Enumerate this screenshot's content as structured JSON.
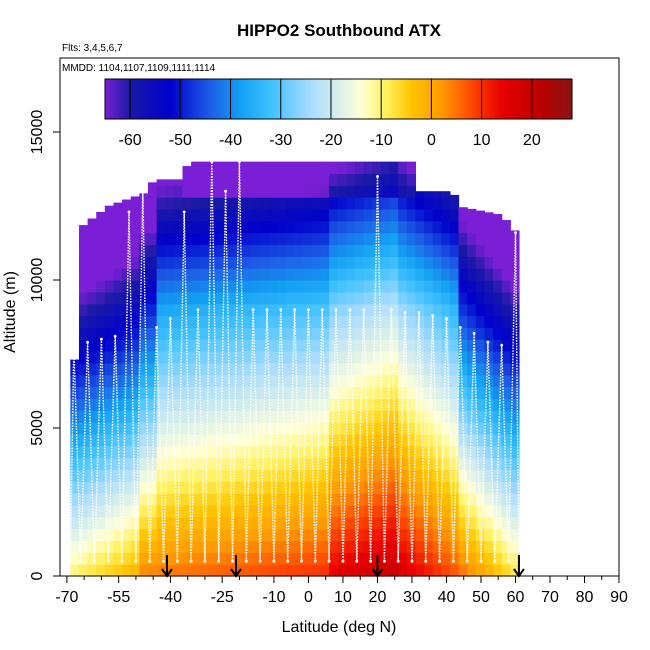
{
  "chart_data": {
    "type": "heatmap",
    "title": "HIPPO2 Southbound ATX",
    "subtitle_flights": "Flts: 3,4,5,6,7",
    "subtitle_dates": "MMDD: 1104,1107,1109,1111,1114",
    "xlabel": "Latitude (deg N)",
    "ylabel": "Altitude (m)",
    "xlim": [
      -72,
      90
    ],
    "ylim": [
      0,
      17500
    ],
    "x_ticks": [
      -70,
      -55,
      -40,
      -25,
      -10,
      0,
      10,
      20,
      30,
      40,
      50,
      60,
      70,
      80,
      90
    ],
    "x_tick_labels": [
      "-70",
      "-55",
      "-40",
      "-25",
      "-10",
      "0",
      "10",
      "20",
      "30",
      "40",
      "50",
      "60",
      "70",
      "80",
      "90"
    ],
    "x_minor_ticks": [
      -65,
      -60,
      -50,
      -45,
      -35,
      -30,
      -20,
      -15,
      -5,
      5,
      15,
      25,
      35,
      45,
      55,
      65,
      75,
      85
    ],
    "y_ticks": [
      0,
      5000,
      10000,
      15000
    ],
    "y_tick_labels": [
      "0",
      "5000",
      "10000",
      "15000"
    ],
    "colorbar": {
      "range": [
        -65,
        28
      ],
      "ticks": [
        -60,
        -50,
        -40,
        -30,
        -20,
        -10,
        0,
        10,
        20
      ],
      "tick_labels": [
        "-60",
        "-50",
        "-40",
        "-30",
        "-20",
        "-10",
        "0",
        "10",
        "20"
      ],
      "colors": [
        "#7a1fd6",
        "#1a1aa6",
        "#0000cc",
        "#1d5fe6",
        "#12a0f2",
        "#3fc1ff",
        "#a8dcff",
        "#ffffd8",
        "#fff05a",
        "#ffc400",
        "#ff9a00",
        "#ff4800",
        "#e80000",
        "#b80000",
        "#8a1515"
      ],
      "color_positions": [
        -65,
        -60,
        -52,
        -44,
        -38,
        -32,
        -24,
        -14,
        -9,
        -4,
        2,
        8,
        14,
        22,
        28
      ]
    },
    "lat_range": [
      -69,
      61
    ],
    "top_profile": {
      "lat": [
        -69,
        -67,
        -58,
        -46,
        -45,
        -36,
        -35,
        -25,
        -20,
        -10,
        0,
        10,
        20,
        30,
        31,
        42,
        43,
        56,
        61
      ],
      "alt": [
        0,
        11700,
        12500,
        13000,
        13400,
        13400,
        14000,
        14000,
        14000,
        14000,
        14000,
        14000,
        14000,
        14000,
        13000,
        13000,
        12500,
        12200,
        11500
      ]
    },
    "arrow_markers_lat": [
      -41,
      -21,
      20,
      61
    ],
    "flight_track_lat": [
      -69,
      -68,
      -66,
      -64,
      -62,
      -60,
      -58,
      -56,
      -54,
      -52,
      -50,
      -48,
      -46,
      -44,
      -42,
      -40,
      -38,
      -36,
      -34,
      -32,
      -30,
      -28,
      -26,
      -24,
      -22,
      -20,
      -18,
      -16,
      -14,
      -12,
      -10,
      -8,
      -6,
      -4,
      -2,
      0,
      2,
      4,
      6,
      8,
      10,
      12,
      14,
      16,
      18,
      20,
      22,
      24,
      26,
      28,
      30,
      32,
      34,
      36,
      38,
      40,
      42,
      44,
      46,
      48,
      50,
      52,
      54,
      56,
      58,
      60,
      61
    ],
    "flight_track_alt": [
      500,
      7800,
      500,
      7900,
      500,
      8000,
      500,
      8100,
      500,
      12300,
      500,
      13000,
      500,
      8400,
      500,
      8700,
      500,
      12300,
      500,
      9000,
      500,
      14000,
      500,
      13000,
      500,
      14000,
      500,
      9000,
      500,
      9000,
      500,
      9000,
      500,
      9000,
      500,
      9000,
      500,
      9000,
      500,
      9000,
      500,
      9000,
      500,
      9000,
      500,
      13500,
      500,
      9000,
      500,
      8900,
      500,
      8900,
      500,
      8800,
      500,
      8700,
      500,
      8400,
      500,
      8200,
      500,
      7900,
      500,
      7800,
      500,
      11600,
      500
    ]
  }
}
